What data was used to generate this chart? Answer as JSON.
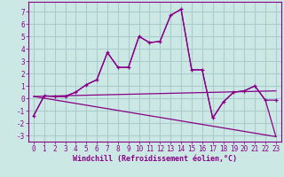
{
  "xlabel": "Windchill (Refroidissement éolien,°C)",
  "bg_color": "#cce8e4",
  "grid_color": "#aacccc",
  "line_color": "#880088",
  "line1_x": [
    0,
    1,
    2,
    3,
    4,
    5,
    6,
    7,
    8,
    9,
    10,
    11,
    12,
    13,
    14,
    15,
    16,
    17,
    18,
    19,
    20,
    21,
    22,
    23
  ],
  "line1_y": [
    -1.4,
    0.2,
    0.15,
    0.15,
    0.5,
    1.1,
    1.5,
    3.7,
    2.5,
    2.5,
    5.0,
    4.5,
    4.6,
    6.7,
    7.2,
    2.3,
    2.3,
    -1.6,
    -0.3,
    0.5,
    0.6,
    1.0,
    -0.15,
    -0.15
  ],
  "line2_x": [
    0,
    1,
    2,
    3,
    4,
    5,
    6,
    7,
    8,
    9,
    10,
    11,
    12,
    13,
    14,
    15,
    16,
    17,
    18,
    19,
    20,
    21,
    22,
    23
  ],
  "line2_y": [
    -1.4,
    0.2,
    0.15,
    0.15,
    0.5,
    1.1,
    1.5,
    3.7,
    2.5,
    2.5,
    5.0,
    4.5,
    4.6,
    6.7,
    7.2,
    2.3,
    2.3,
    -1.6,
    -0.3,
    0.5,
    0.6,
    1.0,
    -0.15,
    -3.1
  ],
  "line3_x": [
    0,
    23
  ],
  "line3_y": [
    0.15,
    0.6
  ],
  "line4_x": [
    0,
    23
  ],
  "line4_y": [
    0.15,
    -3.1
  ],
  "ylim": [
    -3.5,
    7.8
  ],
  "xlim": [
    -0.5,
    23.5
  ],
  "yticks": [
    -3,
    -2,
    -1,
    0,
    1,
    2,
    3,
    4,
    5,
    6,
    7
  ],
  "xticks": [
    0,
    1,
    2,
    3,
    4,
    5,
    6,
    7,
    8,
    9,
    10,
    11,
    12,
    13,
    14,
    15,
    16,
    17,
    18,
    19,
    20,
    21,
    22,
    23
  ],
  "tick_fontsize": 5.5,
  "xlabel_fontsize": 6.0
}
